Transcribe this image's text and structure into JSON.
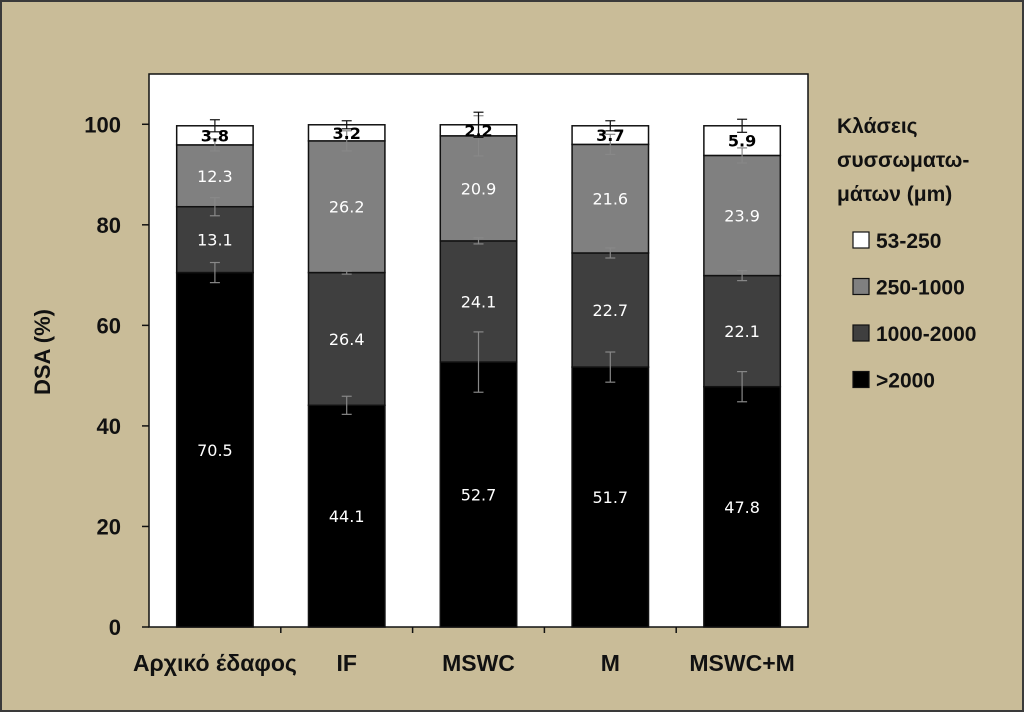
{
  "chart_data": {
    "type": "bar",
    "stacked": true,
    "categories": [
      "Αρχικό έδαφος",
      "IF",
      "MSWC",
      "M",
      "MSWC+M"
    ],
    "ylabel": "DSA (%)",
    "ylim": [
      0,
      110
    ],
    "yticks": [
      0,
      20,
      40,
      60,
      80,
      100
    ],
    "grid": false,
    "legend_title_lines": [
      "Κλάσεις",
      "συσσωματω-",
      "μάτων (μm)"
    ],
    "legend_position": "right",
    "series": [
      {
        "name": ">2000",
        "color": "#000000",
        "label_color": "#ffffff",
        "values": [
          70.5,
          44.1,
          52.7,
          51.7,
          47.8
        ],
        "errors": [
          2.0,
          1.8,
          6.0,
          3.0,
          3.0
        ]
      },
      {
        "name": "1000-2000",
        "color": "#3f3f3f",
        "label_color": "#ffffff",
        "values": [
          13.1,
          26.4,
          24.1,
          22.7,
          22.1
        ],
        "errors": [
          1.8,
          0.3,
          0.6,
          1.0,
          1.0
        ]
      },
      {
        "name": "250-1000",
        "color": "#808080",
        "label_color": "#ffffff",
        "values": [
          12.3,
          26.2,
          20.9,
          21.6,
          23.9
        ],
        "errors": [
          1.2,
          2.0,
          4.0,
          2.0,
          1.5
        ]
      },
      {
        "name": "53-250",
        "color": "#ffffff",
        "label_color": "#000000",
        "values": [
          3.8,
          3.2,
          2.2,
          3.7,
          5.9
        ],
        "errors": [
          1.2,
          0.8,
          2.5,
          1.0,
          1.3
        ]
      }
    ],
    "legend_order": [
      "53-250",
      "250-1000",
      "1000-2000",
      ">2000"
    ]
  }
}
